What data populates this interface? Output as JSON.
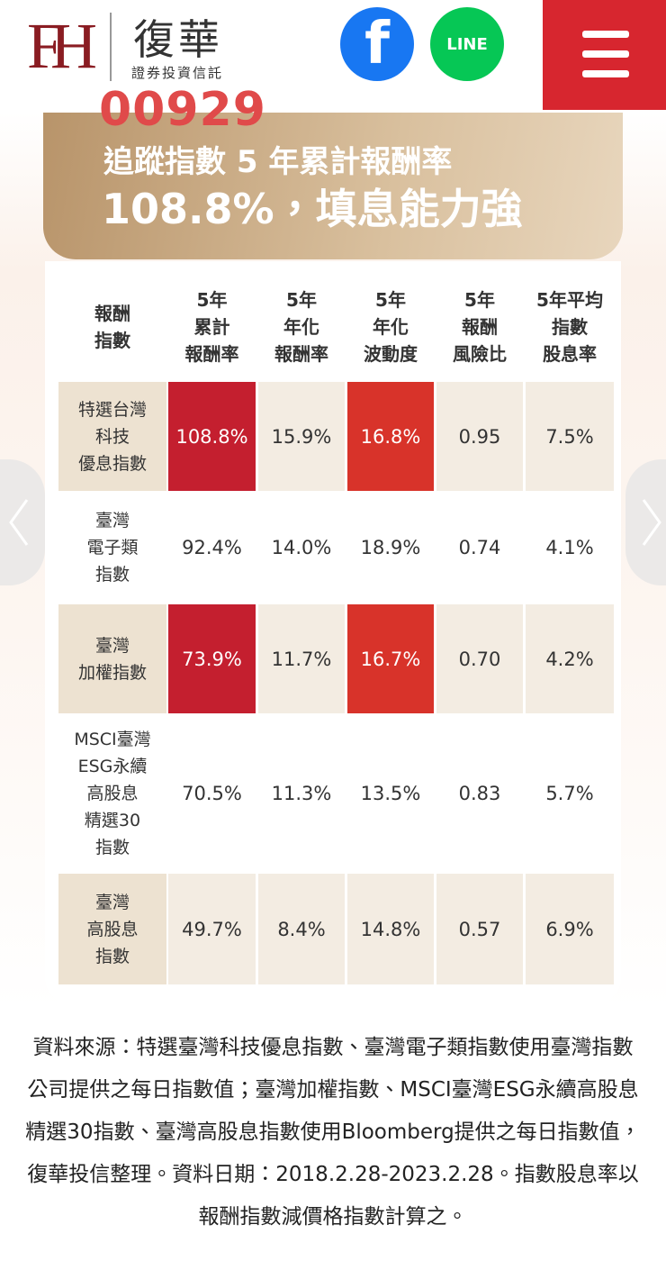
{
  "header": {
    "logo_mark": "FH",
    "brand": "復華",
    "brand_sub": "證券投資信託",
    "facebook": "f",
    "line": "LINE"
  },
  "fund_code": "00929",
  "banner": {
    "line1": "追蹤指數 5 年累計報酬率",
    "line2": "108.8%，填息能力強"
  },
  "table": {
    "columns": [
      [
        "報酬",
        "指數"
      ],
      [
        "5年",
        "累計",
        "報酬率"
      ],
      [
        "5年",
        "年化",
        "報酬率"
      ],
      [
        "5年",
        "年化",
        "波動度"
      ],
      [
        "5年",
        "報酬",
        "風險比"
      ],
      [
        "5年平均",
        "指數",
        "股息率"
      ]
    ],
    "rows": [
      {
        "name": [
          "特選台灣",
          "科技",
          "優息指數"
        ],
        "cells": [
          "108.8%",
          "15.9%",
          "16.8%",
          "0.95",
          "7.5%"
        ],
        "highlighted_columns": [
          0,
          2
        ]
      },
      {
        "name": [
          "臺灣",
          "電子類",
          "指數"
        ],
        "cells": [
          "92.4%",
          "14.0%",
          "18.9%",
          "0.74",
          "4.1%"
        ],
        "highlighted_columns": []
      },
      {
        "name": [
          "臺灣",
          "加權指數"
        ],
        "cells": [
          "73.9%",
          "11.7%",
          "16.7%",
          "0.70",
          "4.2%"
        ],
        "highlighted_columns": [
          0,
          2
        ]
      },
      {
        "name": [
          "MSCI臺灣",
          "ESG永續",
          "高股息",
          "精選30",
          "指數"
        ],
        "cells": [
          "70.5%",
          "11.3%",
          "13.5%",
          "0.83",
          "5.7%"
        ],
        "highlighted_columns": []
      },
      {
        "name": [
          "臺灣",
          "高股息",
          "指數"
        ],
        "cells": [
          "49.7%",
          "8.4%",
          "14.8%",
          "0.57",
          "6.9%"
        ],
        "highlighted_columns": []
      }
    ]
  },
  "footnote": "資料來源：特選臺灣科技優息指數、臺灣電子類指數使用臺灣指數公司提供之每日指數值；臺灣加權指數、MSCI臺灣ESG永續高股息精選30指數、臺灣高股息指數使用Bloomberg提供之每日指數值，復華投信整理。資料日期：2018.2.28-2023.2.28。指數股息率以報酬指數減價格指數計算之。"
}
